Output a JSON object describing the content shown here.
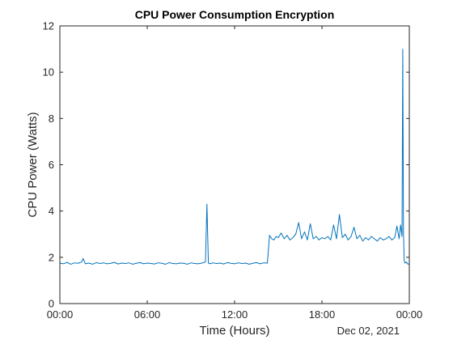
{
  "chart_data": {
    "type": "line",
    "title": "CPU Power Consumption Encryption",
    "xlabel": "Time (Hours)",
    "ylabel": "CPU Power (Watts)",
    "date_label": "Dec 02, 2021",
    "xlim": [
      0,
      24
    ],
    "ylim": [
      0,
      12
    ],
    "x_ticks": [
      {
        "value": 0,
        "label": "00:00"
      },
      {
        "value": 6,
        "label": "06:00"
      },
      {
        "value": 12,
        "label": "12:00"
      },
      {
        "value": 18,
        "label": "18:00"
      },
      {
        "value": 24,
        "label": "00:00"
      }
    ],
    "y_ticks": [
      0,
      2,
      4,
      6,
      8,
      10,
      12
    ],
    "grid": false,
    "series": [
      {
        "color": "#0072bd",
        "x": [
          0,
          0.25,
          0.5,
          0.75,
          1.0,
          1.25,
          1.5,
          1.6,
          1.75,
          2.0,
          2.25,
          2.5,
          2.75,
          3.0,
          3.25,
          3.5,
          3.75,
          4.0,
          4.25,
          4.5,
          4.75,
          5.0,
          5.25,
          5.5,
          5.75,
          6.0,
          6.25,
          6.5,
          6.75,
          7.0,
          7.25,
          7.5,
          7.75,
          8.0,
          8.25,
          8.5,
          8.75,
          9.0,
          9.25,
          9.5,
          9.75,
          10.0,
          10.1,
          10.2,
          10.3,
          10.5,
          10.75,
          11.0,
          11.25,
          11.5,
          11.75,
          12.0,
          12.25,
          12.5,
          12.75,
          13.0,
          13.25,
          13.5,
          13.75,
          14.0,
          14.25,
          14.4,
          14.55,
          14.7,
          14.85,
          15.0,
          15.2,
          15.4,
          15.6,
          15.8,
          16.0,
          16.2,
          16.4,
          16.6,
          16.8,
          17.0,
          17.2,
          17.4,
          17.6,
          17.8,
          18.0,
          18.2,
          18.4,
          18.6,
          18.8,
          19.0,
          19.2,
          19.4,
          19.6,
          19.8,
          20.0,
          20.2,
          20.4,
          20.6,
          20.8,
          21.0,
          21.2,
          21.4,
          21.6,
          21.8,
          22.0,
          22.2,
          22.4,
          22.6,
          22.8,
          23.0,
          23.15,
          23.3,
          23.4,
          23.5,
          23.55,
          23.6,
          23.65,
          23.7,
          23.8,
          23.9,
          24.0
        ],
        "values": [
          1.75,
          1.72,
          1.78,
          1.7,
          1.76,
          1.74,
          1.8,
          1.95,
          1.72,
          1.75,
          1.7,
          1.77,
          1.73,
          1.76,
          1.72,
          1.74,
          1.78,
          1.71,
          1.75,
          1.73,
          1.76,
          1.7,
          1.74,
          1.77,
          1.72,
          1.75,
          1.73,
          1.71,
          1.76,
          1.74,
          1.7,
          1.77,
          1.73,
          1.72,
          1.75,
          1.74,
          1.7,
          1.76,
          1.73,
          1.72,
          1.75,
          1.8,
          4.3,
          1.75,
          1.72,
          1.76,
          1.73,
          1.75,
          1.71,
          1.77,
          1.74,
          1.72,
          1.76,
          1.73,
          1.75,
          1.7,
          1.74,
          1.77,
          1.72,
          1.76,
          1.75,
          2.95,
          2.8,
          2.75,
          2.9,
          2.85,
          3.05,
          2.8,
          2.95,
          2.75,
          2.85,
          3.0,
          3.5,
          2.8,
          3.1,
          2.75,
          3.45,
          2.8,
          2.9,
          2.75,
          2.85,
          2.8,
          2.9,
          2.75,
          3.4,
          2.8,
          3.85,
          2.85,
          3.0,
          2.75,
          2.9,
          3.3,
          2.8,
          2.95,
          2.7,
          2.85,
          2.75,
          2.9,
          2.8,
          2.7,
          2.85,
          2.75,
          2.8,
          2.9,
          2.75,
          2.85,
          3.35,
          2.8,
          3.4,
          2.9,
          11.0,
          3.0,
          1.85,
          1.75,
          1.8,
          1.7,
          1.72
        ]
      }
    ]
  }
}
